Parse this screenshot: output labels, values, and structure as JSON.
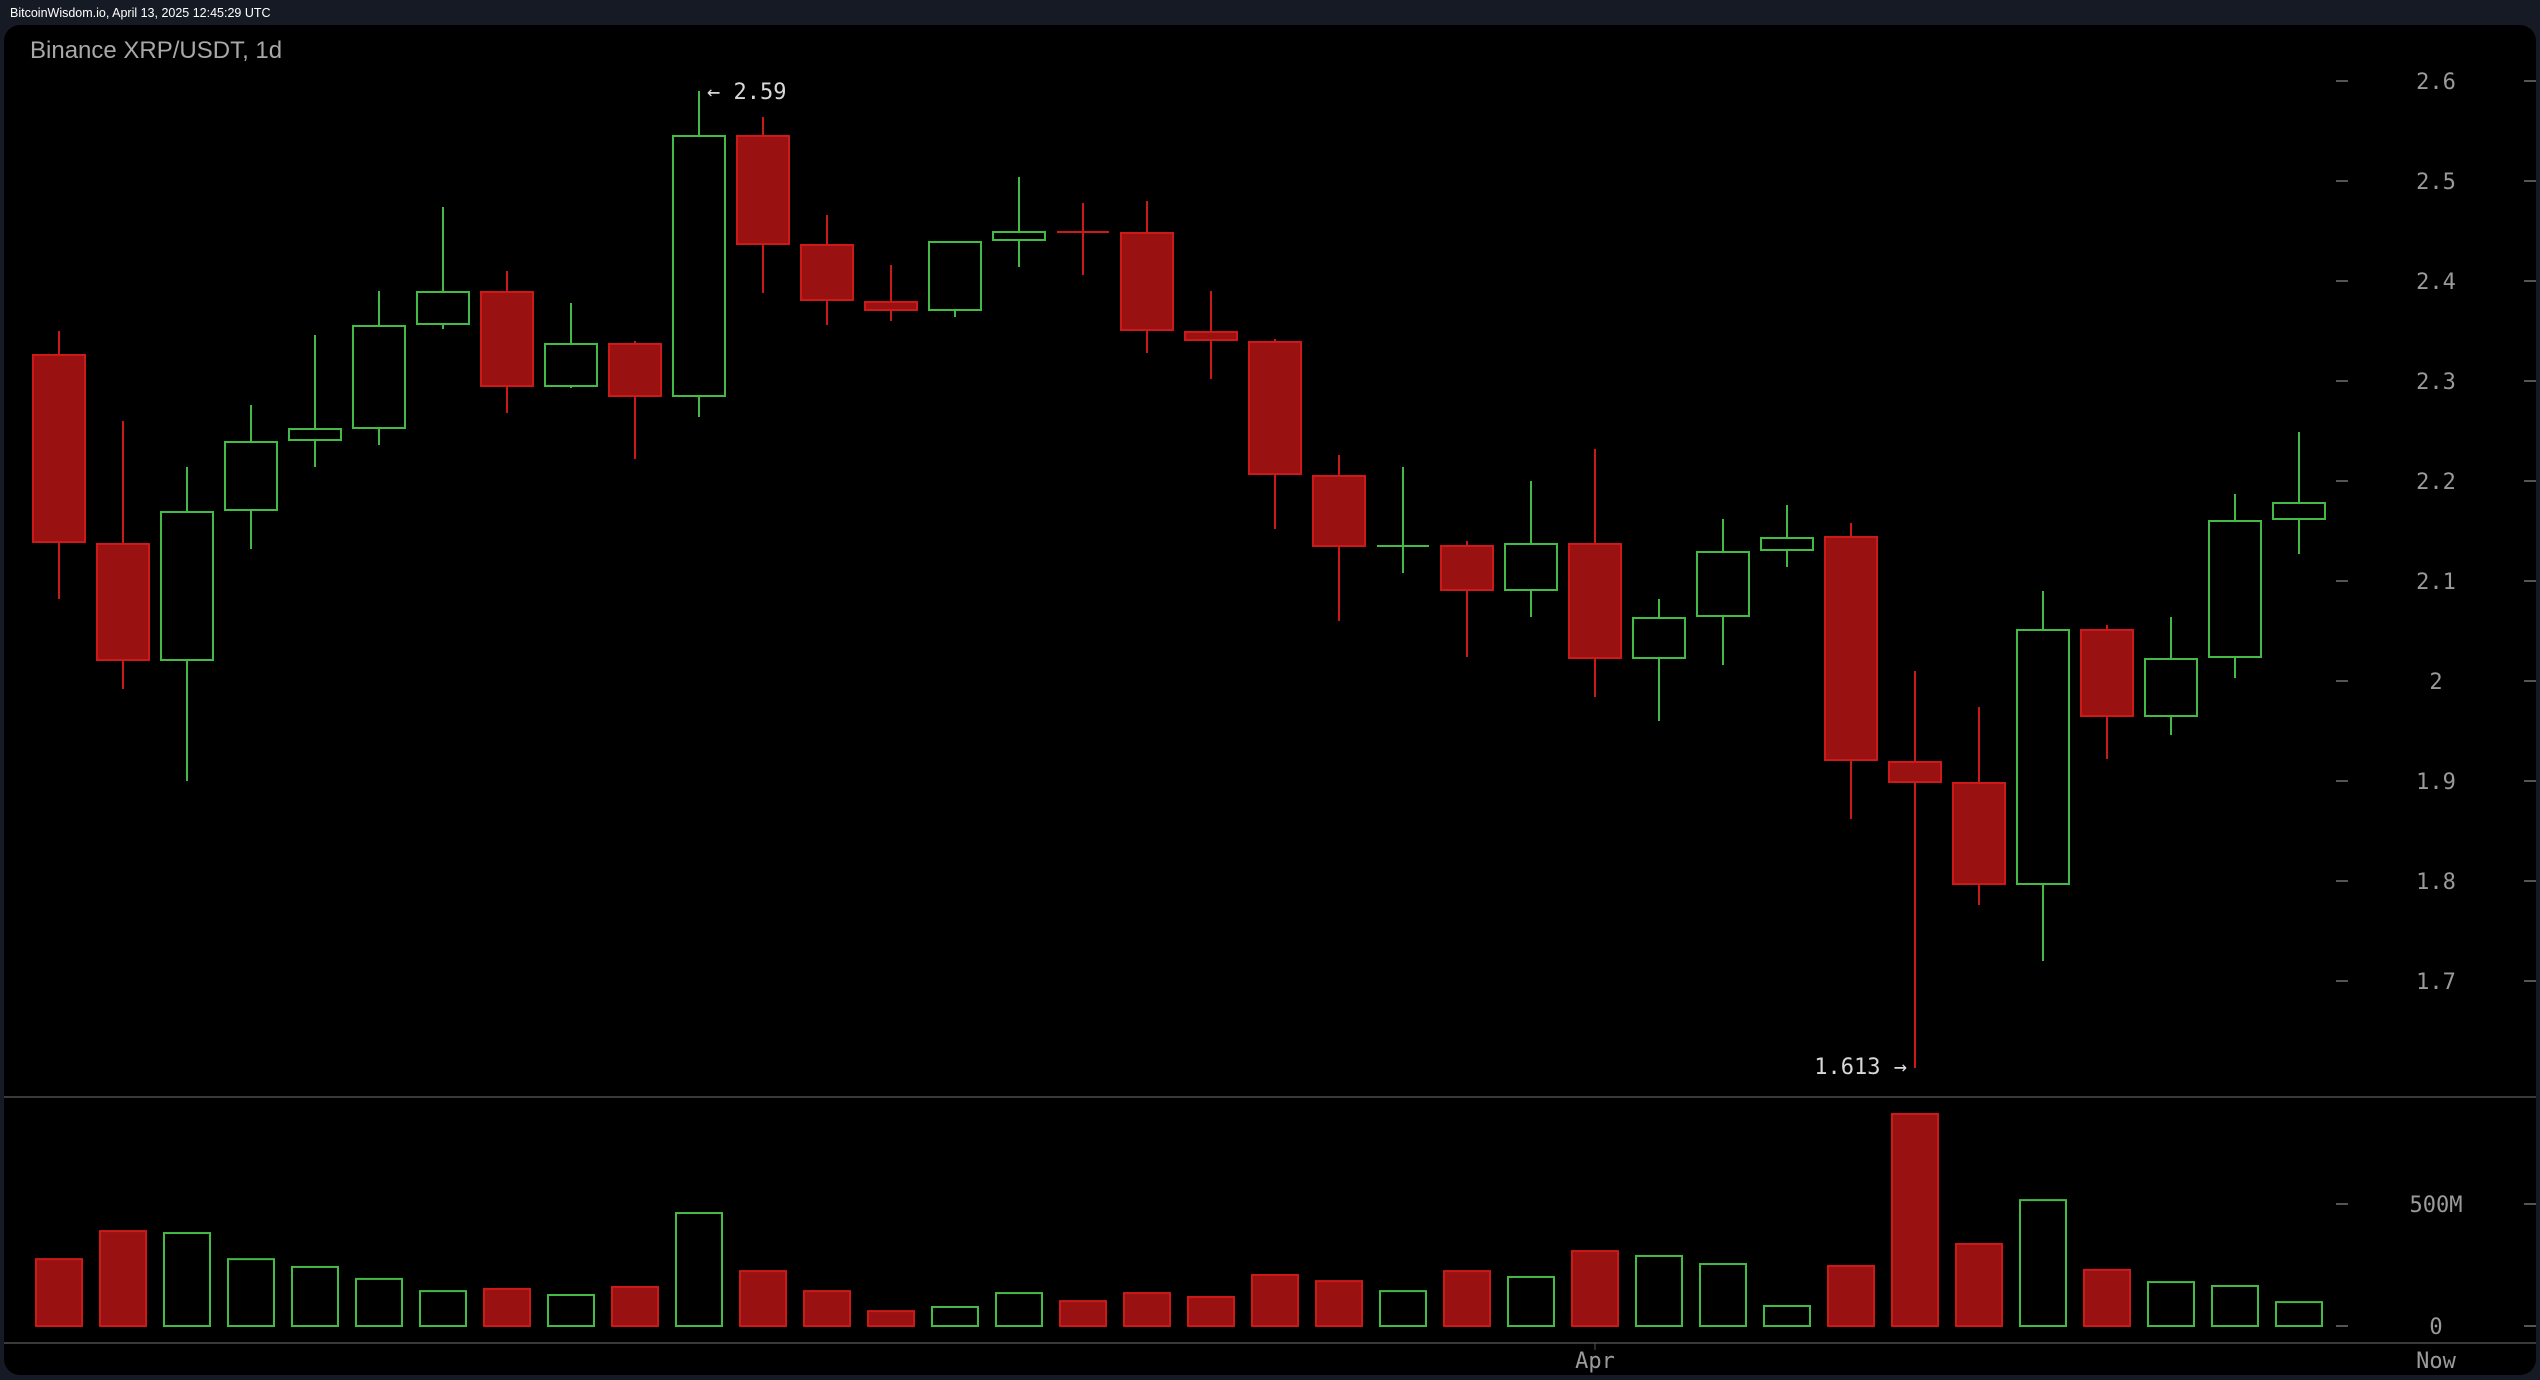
{
  "header": {
    "text": "BitcoinWisdom.io, April 13, 2025 12:45:29 UTC"
  },
  "chart_title": "Binance XRP/USDT, 1d",
  "colors": {
    "up": "#44bb44",
    "down_fill": "#991111",
    "down_stroke": "#cc1a1a",
    "background": "#000000",
    "frame": "#151a24",
    "axis_text": "#9a9a9a",
    "grid_line": "#3a3a3a"
  },
  "annotations": {
    "high_label": "← 2.59",
    "low_label": "1.613 →"
  },
  "x_axis": {
    "labels": [
      {
        "text": "Apr",
        "candle_index": 24
      },
      {
        "text": "Now",
        "x": 2436
      }
    ]
  },
  "chart_data": [
    {
      "type": "candlestick",
      "title": "Binance XRP/USDT, 1d",
      "ylabel": "Price (USDT)",
      "y_ticks": [
        "2.6",
        "2.5",
        "2.4",
        "2.3",
        "2.2",
        "2.1",
        "2",
        "1.9",
        "1.8",
        "1.7"
      ],
      "ylim": [
        1.6,
        2.62
      ],
      "grid": false,
      "annotations": [
        {
          "text": "← 2.59",
          "value": 2.59,
          "candle_index": 10
        },
        {
          "text": "1.613 →",
          "value": 1.613,
          "candle_index": 29
        }
      ],
      "x_tick_labels": [
        "Apr",
        "Now"
      ],
      "candles": [
        {
          "o": 2.326,
          "h": 2.35,
          "l": 2.082,
          "c": 2.139
        },
        {
          "o": 2.137,
          "h": 2.26,
          "l": 1.992,
          "c": 2.021
        },
        {
          "o": 2.021,
          "h": 2.214,
          "l": 1.9,
          "c": 2.169
        },
        {
          "o": 2.171,
          "h": 2.276,
          "l": 2.132,
          "c": 2.239
        },
        {
          "o": 2.241,
          "h": 2.346,
          "l": 2.214,
          "c": 2.252
        },
        {
          "o": 2.253,
          "h": 2.39,
          "l": 2.236,
          "c": 2.355
        },
        {
          "o": 2.357,
          "h": 2.474,
          "l": 2.352,
          "c": 2.389
        },
        {
          "o": 2.389,
          "h": 2.41,
          "l": 2.268,
          "c": 2.295
        },
        {
          "o": 2.295,
          "h": 2.378,
          "l": 2.293,
          "c": 2.337
        },
        {
          "o": 2.337,
          "h": 2.34,
          "l": 2.222,
          "c": 2.285
        },
        {
          "o": 2.285,
          "h": 2.59,
          "l": 2.264,
          "c": 2.545
        },
        {
          "o": 2.545,
          "h": 2.564,
          "l": 2.388,
          "c": 2.437
        },
        {
          "o": 2.436,
          "h": 2.466,
          "l": 2.356,
          "c": 2.381
        },
        {
          "o": 2.379,
          "h": 2.416,
          "l": 2.36,
          "c": 2.371
        },
        {
          "o": 2.371,
          "h": 2.439,
          "l": 2.364,
          "c": 2.439
        },
        {
          "o": 2.441,
          "h": 2.504,
          "l": 2.414,
          "c": 2.449
        },
        {
          "o": 2.449,
          "h": 2.478,
          "l": 2.406,
          "c": 2.449
        },
        {
          "o": 2.448,
          "h": 2.48,
          "l": 2.328,
          "c": 2.351
        },
        {
          "o": 2.349,
          "h": 2.39,
          "l": 2.302,
          "c": 2.341
        },
        {
          "o": 2.339,
          "h": 2.342,
          "l": 2.152,
          "c": 2.207
        },
        {
          "o": 2.205,
          "h": 2.226,
          "l": 2.06,
          "c": 2.135
        },
        {
          "o": 2.135,
          "h": 2.214,
          "l": 2.108,
          "c": 2.135,
          "up": true
        },
        {
          "o": 2.135,
          "h": 2.14,
          "l": 2.024,
          "c": 2.091
        },
        {
          "o": 2.091,
          "h": 2.2,
          "l": 2.064,
          "c": 2.137
        },
        {
          "o": 2.137,
          "h": 2.232,
          "l": 1.984,
          "c": 2.023
        },
        {
          "o": 2.023,
          "h": 2.082,
          "l": 1.96,
          "c": 2.063
        },
        {
          "o": 2.065,
          "h": 2.162,
          "l": 2.016,
          "c": 2.129
        },
        {
          "o": 2.131,
          "h": 2.176,
          "l": 2.114,
          "c": 2.143
        },
        {
          "o": 2.144,
          "h": 2.158,
          "l": 1.862,
          "c": 1.921
        },
        {
          "o": 1.919,
          "h": 2.01,
          "l": 1.613,
          "c": 1.899
        },
        {
          "o": 1.898,
          "h": 1.974,
          "l": 1.776,
          "c": 1.797
        },
        {
          "o": 1.797,
          "h": 2.09,
          "l": 1.72,
          "c": 2.051
        },
        {
          "o": 2.051,
          "h": 2.056,
          "l": 1.922,
          "c": 1.965
        },
        {
          "o": 1.965,
          "h": 2.064,
          "l": 1.946,
          "c": 2.022
        },
        {
          "o": 2.024,
          "h": 2.187,
          "l": 2.003,
          "c": 2.16
        },
        {
          "o": 2.162,
          "h": 2.249,
          "l": 2.127,
          "c": 2.178
        }
      ]
    },
    {
      "type": "bar",
      "title": "Volume",
      "y_ticks": [
        "500M",
        "0"
      ],
      "ylim": [
        0,
        900
      ],
      "unit": "M",
      "values": [
        274,
        389,
        381,
        274,
        242,
        193,
        143,
        152,
        127,
        160,
        463,
        225,
        143,
        61,
        78,
        135,
        102,
        135,
        119,
        209,
        184,
        143,
        225,
        201,
        307,
        287,
        254,
        82,
        246,
        869,
        336,
        516,
        230,
        180,
        164,
        98
      ]
    }
  ]
}
